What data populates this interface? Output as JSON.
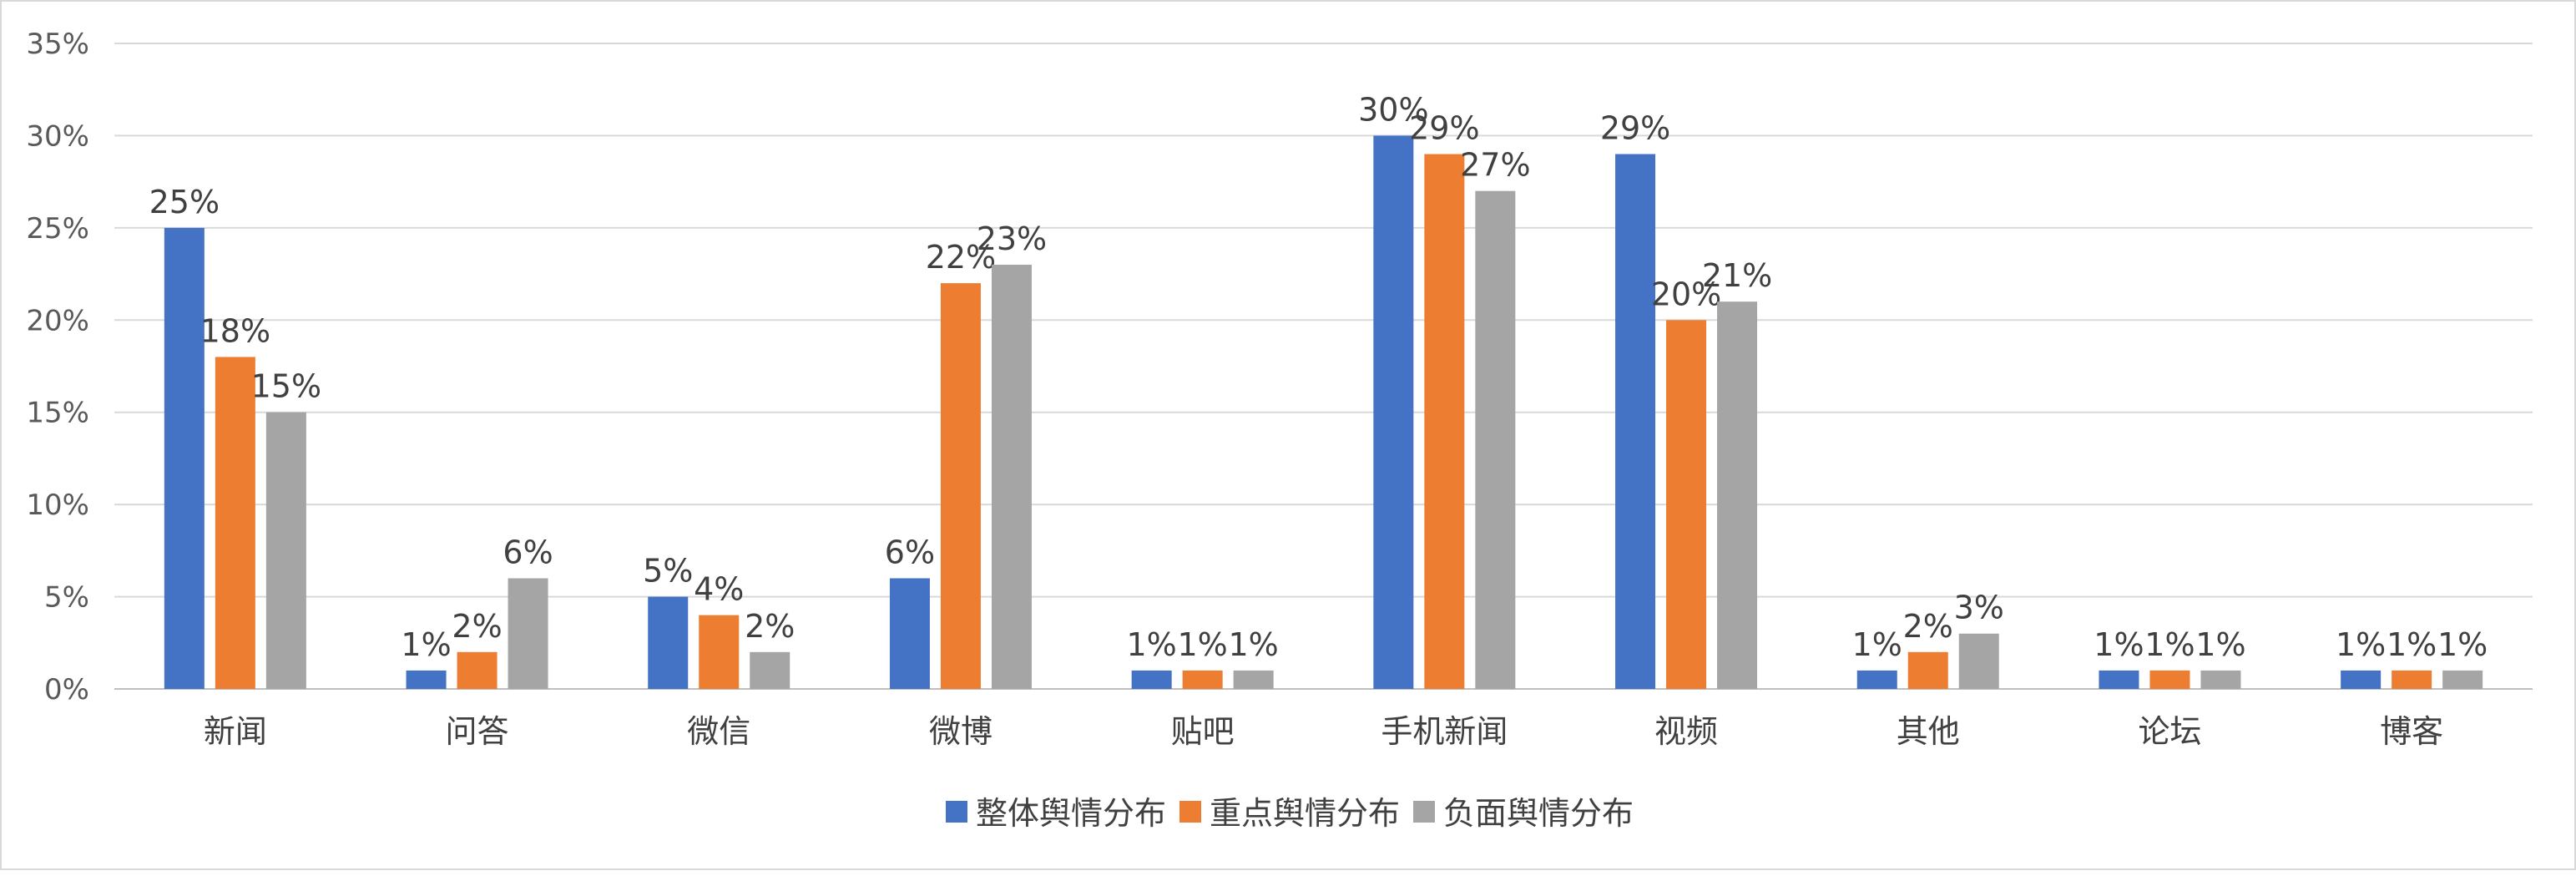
{
  "chart_data": {
    "type": "bar",
    "categories": [
      "新闻",
      "问答",
      "微信",
      "微博",
      "贴吧",
      "手机新闻",
      "视频",
      "其他",
      "论坛",
      "博客"
    ],
    "series": [
      {
        "name": "整体舆情分布",
        "color": "#4472c4",
        "values": [
          25,
          1,
          5,
          6,
          1,
          30,
          29,
          1,
          1,
          1
        ]
      },
      {
        "name": "重点舆情分布",
        "color": "#ed7d31",
        "values": [
          18,
          2,
          4,
          22,
          1,
          29,
          20,
          2,
          1,
          1
        ]
      },
      {
        "name": "负面舆情分布",
        "color": "#a5a5a5",
        "values": [
          15,
          6,
          2,
          23,
          1,
          27,
          21,
          3,
          1,
          1
        ]
      }
    ],
    "value_suffix": "%",
    "yticks": [
      "0%",
      "5%",
      "10%",
      "15%",
      "20%",
      "25%",
      "30%",
      "35%"
    ],
    "ylim": [
      0,
      35
    ],
    "grid": true,
    "legend_position": "bottom"
  }
}
